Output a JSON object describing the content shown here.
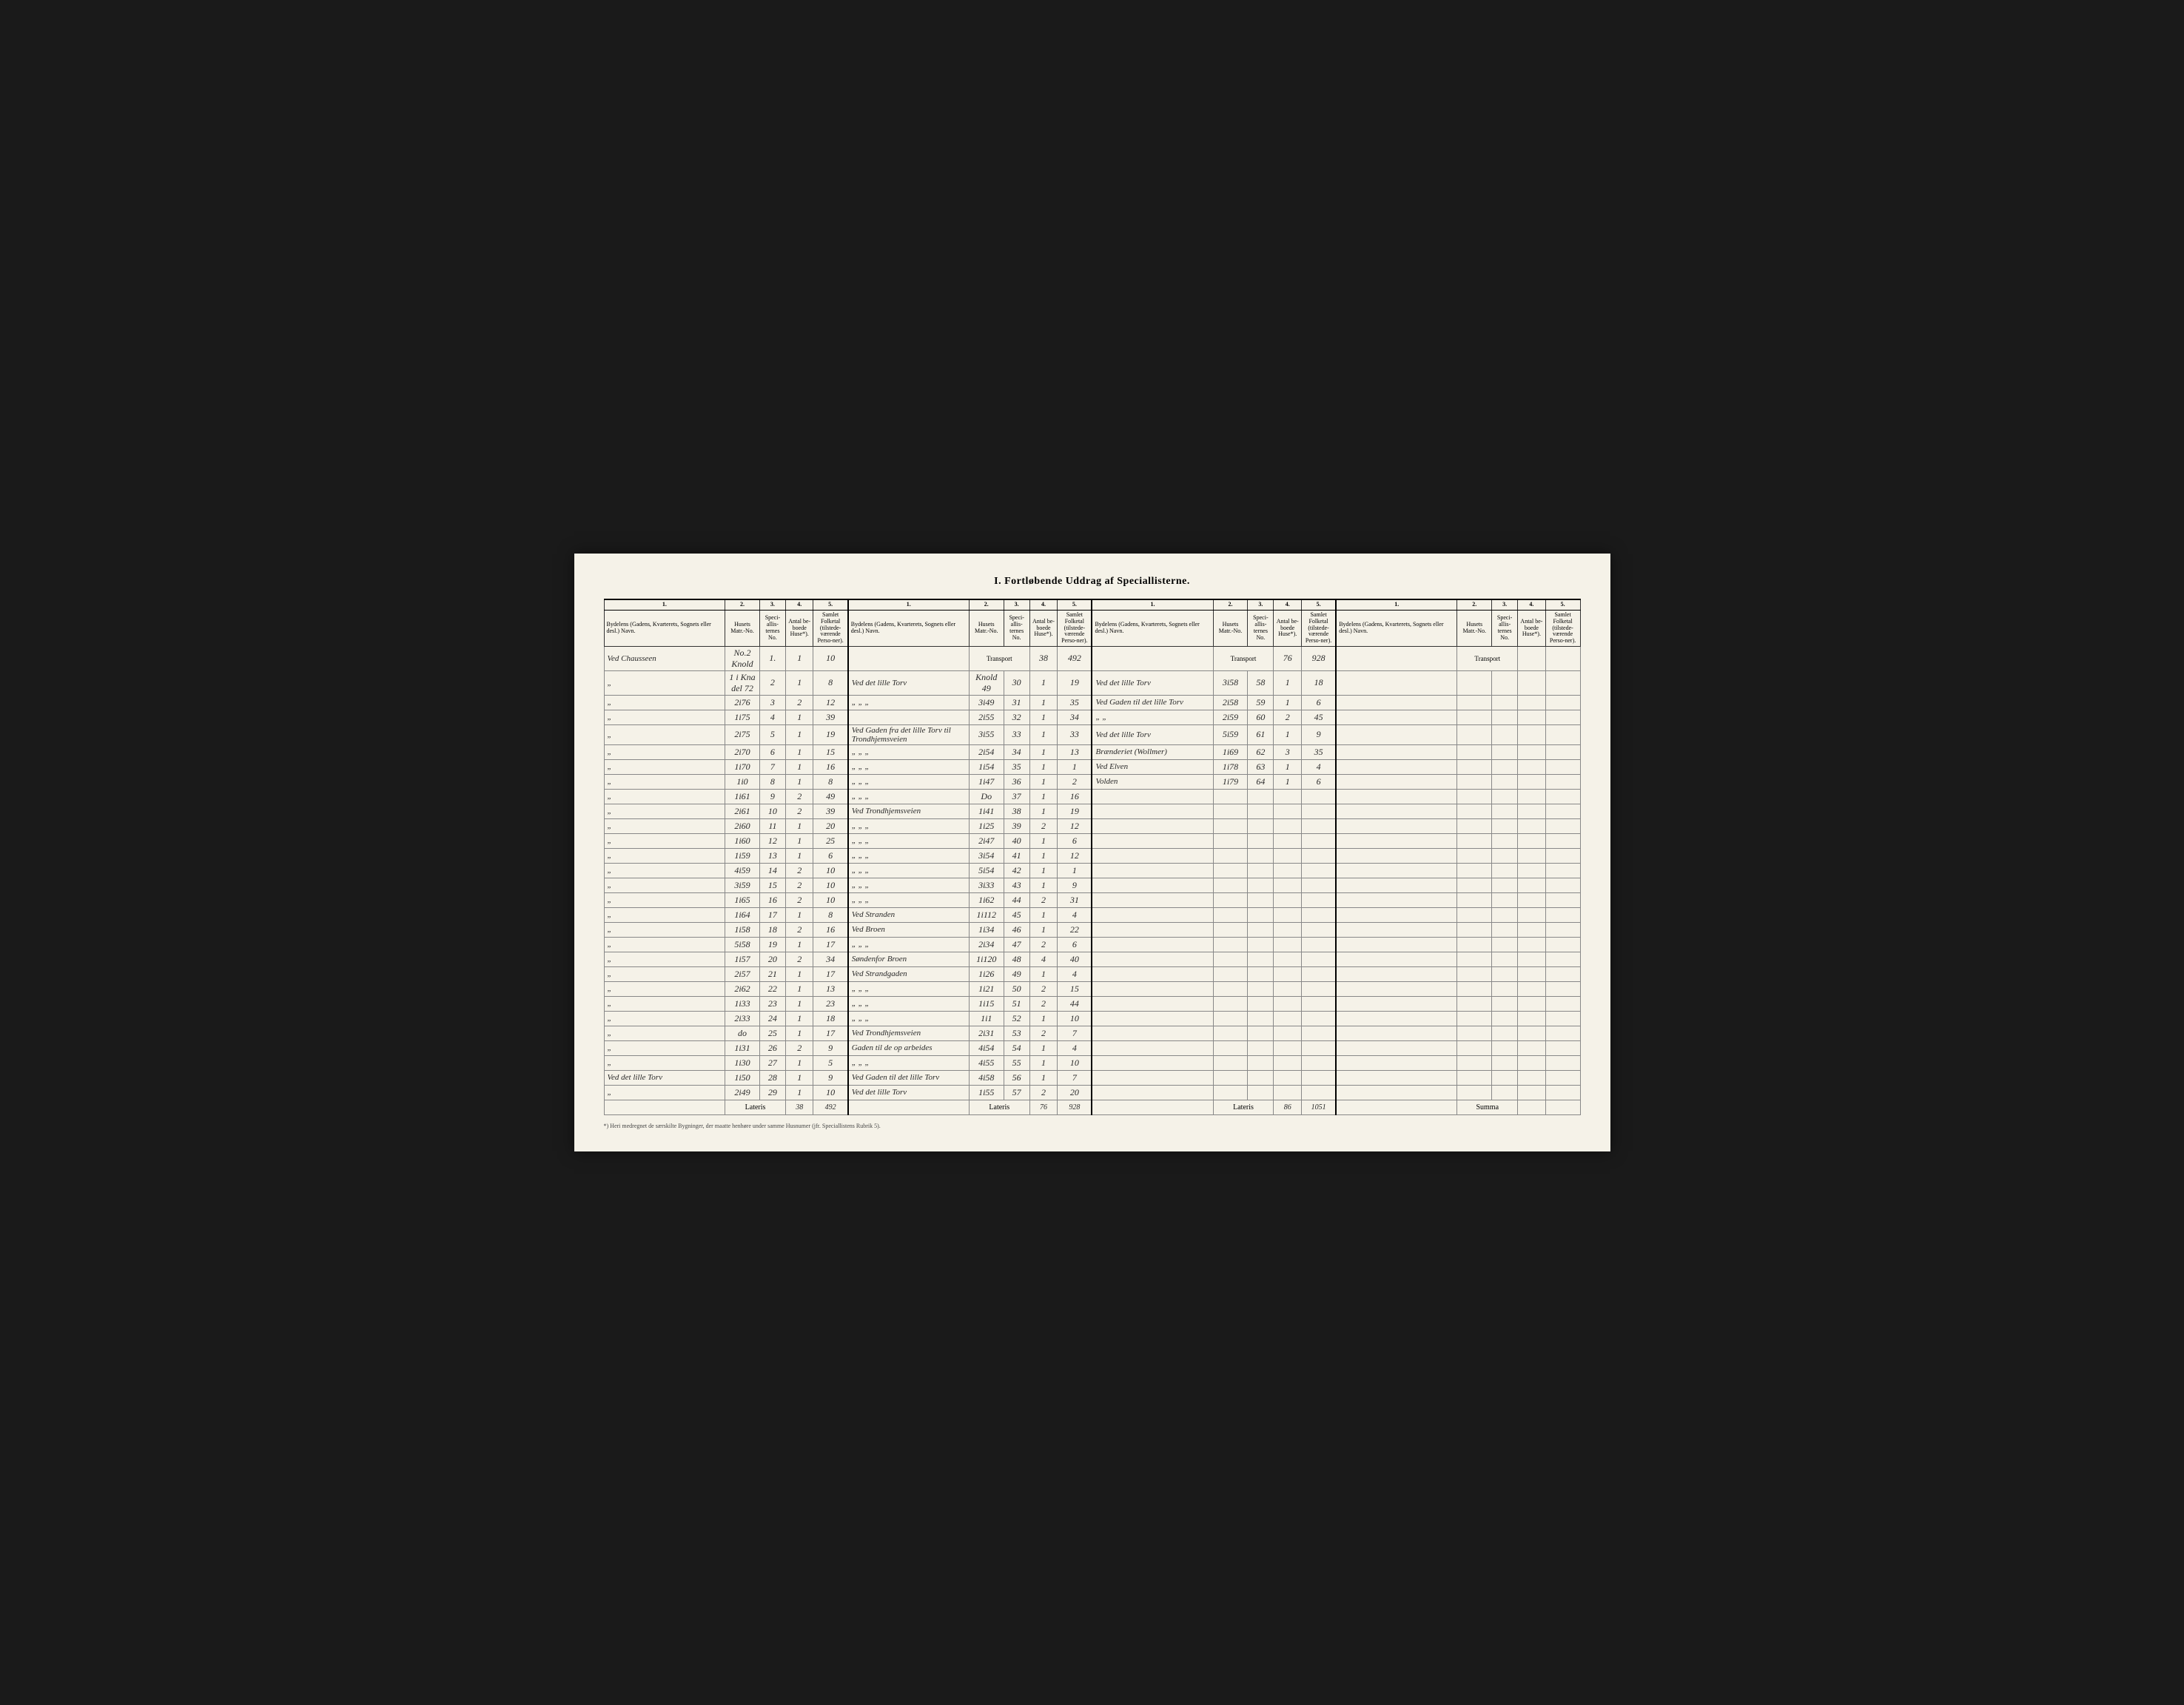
{
  "title": "I. Fortløbende Uddrag af Speciallisterne.",
  "headers": {
    "col1_num": "1.",
    "col1": "Bydelens (Gadens, Kvarterets, Sognets eller desl.) Navn.",
    "col2_num": "2.",
    "col2": "Husets Matr.-No.",
    "col3_num": "3.",
    "col3": "Speci-allis-ternes No.",
    "col4_num": "4.",
    "col4": "Antal be-boede Huse*).",
    "col5_num": "5.",
    "col5": "Samlet Folketal (tilstede-værende Perso-ner).",
    "transport": "Transport"
  },
  "section1": {
    "rows": [
      {
        "name": "Ved Chausseen",
        "matr": "No.2 Knold",
        "spec": "1.",
        "huse": "1",
        "folk": "10"
      },
      {
        "name": "\"",
        "matr": "1 i Kna del 72",
        "spec": "2",
        "huse": "1",
        "folk": "8"
      },
      {
        "name": "\"",
        "matr": "2i76",
        "spec": "3",
        "huse": "2",
        "folk": "12"
      },
      {
        "name": "\"",
        "matr": "1i75",
        "spec": "4",
        "huse": "1",
        "folk": "39"
      },
      {
        "name": "\"",
        "matr": "2i75",
        "spec": "5",
        "huse": "1",
        "folk": "19"
      },
      {
        "name": "\"",
        "matr": "2i70",
        "spec": "6",
        "huse": "1",
        "folk": "15"
      },
      {
        "name": "\"",
        "matr": "1i70",
        "spec": "7",
        "huse": "1",
        "folk": "16"
      },
      {
        "name": "\"",
        "matr": "1i0",
        "spec": "8",
        "huse": "1",
        "folk": "8"
      },
      {
        "name": "\"",
        "matr": "1i61",
        "spec": "9",
        "huse": "2",
        "folk": "49"
      },
      {
        "name": "\"",
        "matr": "2i61",
        "spec": "10",
        "huse": "2",
        "folk": "39"
      },
      {
        "name": "\"",
        "matr": "2i60",
        "spec": "11",
        "huse": "1",
        "folk": "20"
      },
      {
        "name": "\"",
        "matr": "1i60",
        "spec": "12",
        "huse": "1",
        "folk": "25"
      },
      {
        "name": "\"",
        "matr": "1i59",
        "spec": "13",
        "huse": "1",
        "folk": "6"
      },
      {
        "name": "\"",
        "matr": "4i59",
        "spec": "14",
        "huse": "2",
        "folk": "10"
      },
      {
        "name": "\"",
        "matr": "3i59",
        "spec": "15",
        "huse": "2",
        "folk": "10"
      },
      {
        "name": "\"",
        "matr": "1i65",
        "spec": "16",
        "huse": "2",
        "folk": "10"
      },
      {
        "name": "\"",
        "matr": "1i64",
        "spec": "17",
        "huse": "1",
        "folk": "8"
      },
      {
        "name": "\"",
        "matr": "1i58",
        "spec": "18",
        "huse": "2",
        "folk": "16"
      },
      {
        "name": "\"",
        "matr": "5i58",
        "spec": "19",
        "huse": "1",
        "folk": "17"
      },
      {
        "name": "\"",
        "matr": "1i57",
        "spec": "20",
        "huse": "2",
        "folk": "34"
      },
      {
        "name": "\"",
        "matr": "2i57",
        "spec": "21",
        "huse": "1",
        "folk": "17"
      },
      {
        "name": "\"",
        "matr": "2i62",
        "spec": "22",
        "huse": "1",
        "folk": "13"
      },
      {
        "name": "\"",
        "matr": "1i33",
        "spec": "23",
        "huse": "1",
        "folk": "23"
      },
      {
        "name": "\"",
        "matr": "2i33",
        "spec": "24",
        "huse": "1",
        "folk": "18"
      },
      {
        "name": "\"",
        "matr": "do",
        "spec": "25",
        "huse": "1",
        "folk": "17"
      },
      {
        "name": "\"",
        "matr": "1i31",
        "spec": "26",
        "huse": "2",
        "folk": "9"
      },
      {
        "name": "\"",
        "matr": "1i30",
        "spec": "27",
        "huse": "1",
        "folk": "5"
      },
      {
        "name": "Ved det lille Torv",
        "matr": "1i50",
        "spec": "28",
        "huse": "1",
        "folk": "9"
      },
      {
        "name": "\"",
        "matr": "2i49",
        "spec": "29",
        "huse": "1",
        "folk": "10"
      }
    ],
    "lateris_label": "Lateris",
    "lateris_huse": "38",
    "lateris_folk": "492"
  },
  "section2": {
    "transport_huse": "38",
    "transport_folk": "492",
    "rows": [
      {
        "name": "Ved det lille Torv",
        "matr": "Knold 49",
        "spec": "30",
        "huse": "1",
        "folk": "19"
      },
      {
        "name": "\" \" \"",
        "matr": "3i49",
        "spec": "31",
        "huse": "1",
        "folk": "35"
      },
      {
        "name": "",
        "matr": "2i55",
        "spec": "32",
        "huse": "1",
        "folk": "34"
      },
      {
        "name": "Ved Gaden fra det lille Torv til Trondhjemsveien",
        "matr": "3i55",
        "spec": "33",
        "huse": "1",
        "folk": "33"
      },
      {
        "name": "\" \"",
        "matr": "2i54",
        "spec": "34",
        "huse": "1",
        "folk": "13"
      },
      {
        "name": "\" \"",
        "matr": "1i54",
        "spec": "35",
        "huse": "1",
        "folk": "1"
      },
      {
        "name": "\" \"",
        "matr": "1i47",
        "spec": "36",
        "huse": "1",
        "folk": "2"
      },
      {
        "name": "\" \"",
        "matr": "Do",
        "spec": "37",
        "huse": "1",
        "folk": "16"
      },
      {
        "name": "Ved Trondhjemsveien",
        "matr": "1i41",
        "spec": "38",
        "huse": "1",
        "folk": "19"
      },
      {
        "name": "\" \"",
        "matr": "1i25",
        "spec": "39",
        "huse": "2",
        "folk": "12"
      },
      {
        "name": "\" \"",
        "matr": "2i47",
        "spec": "40",
        "huse": "1",
        "folk": "6"
      },
      {
        "name": "\" \"",
        "matr": "3i54",
        "spec": "41",
        "huse": "1",
        "folk": "12"
      },
      {
        "name": "\" \"",
        "matr": "5i54",
        "spec": "42",
        "huse": "1",
        "folk": "1"
      },
      {
        "name": "\" \"",
        "matr": "3i33",
        "spec": "43",
        "huse": "1",
        "folk": "9"
      },
      {
        "name": "\" \"",
        "matr": "1i62",
        "spec": "44",
        "huse": "2",
        "folk": "31"
      },
      {
        "name": "Ved Stranden",
        "matr": "1i112",
        "spec": "45",
        "huse": "1",
        "folk": "4"
      },
      {
        "name": "Ved Broen",
        "matr": "1i34",
        "spec": "46",
        "huse": "1",
        "folk": "22"
      },
      {
        "name": "\" \"",
        "matr": "2i34",
        "spec": "47",
        "huse": "2",
        "folk": "6"
      },
      {
        "name": "Søndenfor Broen",
        "matr": "1i120",
        "spec": "48",
        "huse": "4",
        "folk": "40"
      },
      {
        "name": "Ved Strandgaden",
        "matr": "1i26",
        "spec": "49",
        "huse": "1",
        "folk": "4"
      },
      {
        "name": "\" \"",
        "matr": "1i21",
        "spec": "50",
        "huse": "2",
        "folk": "15"
      },
      {
        "name": "\" \"",
        "matr": "1i15",
        "spec": "51",
        "huse": "2",
        "folk": "44"
      },
      {
        "name": "\"",
        "matr": "1i1",
        "spec": "52",
        "huse": "1",
        "folk": "10"
      },
      {
        "name": "Ved Trondhjemsveien",
        "matr": "2i31",
        "spec": "53",
        "huse": "2",
        "folk": "7"
      },
      {
        "name": "Gaden til de op arbeides",
        "matr": "4i54",
        "spec": "54",
        "huse": "1",
        "folk": "4"
      },
      {
        "name": "\" \"",
        "matr": "4i55",
        "spec": "55",
        "huse": "1",
        "folk": "10"
      },
      {
        "name": "Ved Gaden til det lille Torv",
        "matr": "4i58",
        "spec": "56",
        "huse": "1",
        "folk": "7"
      },
      {
        "name": "Ved det lille Torv",
        "matr": "1i55",
        "spec": "57",
        "huse": "2",
        "folk": "20"
      }
    ],
    "lateris_label": "Lateris",
    "lateris_huse": "76",
    "lateris_folk": "928"
  },
  "section3": {
    "transport_huse": "76",
    "transport_folk": "928",
    "rows": [
      {
        "name": "Ved det lille Torv",
        "matr": "3i58",
        "spec": "58",
        "huse": "1",
        "folk": "18"
      },
      {
        "name": "Ved Gaden til det lille Torv",
        "matr": "2i58",
        "spec": "59",
        "huse": "1",
        "folk": "6"
      },
      {
        "name": "\" \"",
        "matr": "2i59",
        "spec": "60",
        "huse": "2",
        "folk": "45"
      },
      {
        "name": "Ved det lille Torv",
        "matr": "5i59",
        "spec": "61",
        "huse": "1",
        "folk": "9"
      },
      {
        "name": "Brænderiet (Wollmer)",
        "matr": "1i69",
        "spec": "62",
        "huse": "3",
        "folk": "35"
      },
      {
        "name": "Ved Elven",
        "matr": "1i78",
        "spec": "63",
        "huse": "1",
        "folk": "4"
      },
      {
        "name": "Volden",
        "matr": "1i79",
        "spec": "64",
        "huse": "1",
        "folk": "6"
      }
    ],
    "lateris_label": "Lateris",
    "lateris_huse": "86",
    "lateris_folk": "1051"
  },
  "section4": {
    "summa_label": "Summa"
  },
  "footnote": "*) Heri medregnet de særskilte Bygninger, der maatte henhøre under samme Husnumer (jfr. Speciallistens Rubrik 5)."
}
